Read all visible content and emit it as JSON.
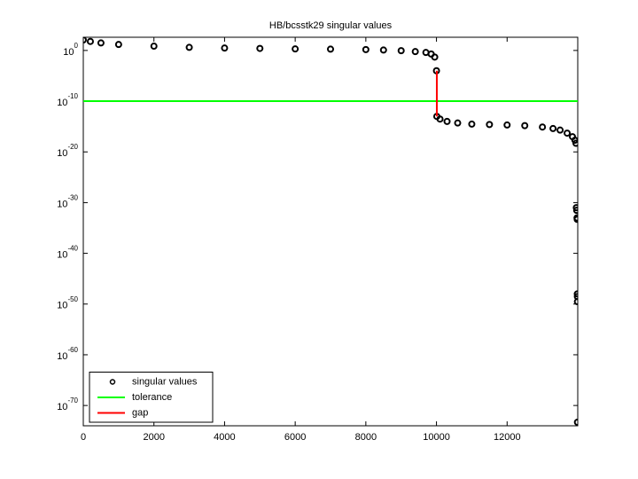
{
  "chart_data": {
    "type": "scatter",
    "title": "HB/bcsstk29 singular values",
    "ylog": true,
    "legend_location": "lower left",
    "xlim": [
      0,
      14000
    ],
    "ylim": [
      1e-74,
      400
    ],
    "xticks": [
      0,
      2000,
      4000,
      6000,
      8000,
      10000,
      12000
    ],
    "yticks": [
      {
        "value": 1,
        "label": "10^0"
      },
      {
        "value": 1e-10,
        "label": "10^-10"
      },
      {
        "value": 1e-20,
        "label": "10^-20"
      },
      {
        "value": 1e-30,
        "label": "10^-30"
      },
      {
        "value": 1e-40,
        "label": "10^-40"
      },
      {
        "value": 1e-50,
        "label": "10^-50"
      },
      {
        "value": 1e-60,
        "label": "10^-60"
      },
      {
        "value": 1e-70,
        "label": "10^-70"
      }
    ],
    "series": [
      {
        "name": "singular values",
        "color": "#000000",
        "style": "marker",
        "x": [
          0,
          200,
          500,
          1000,
          2000,
          3000,
          4000,
          5000,
          6000,
          7000,
          8000,
          8500,
          9000,
          9400,
          9700,
          9850,
          9950,
          10000,
          10010,
          10100,
          10300,
          10600,
          11000,
          11500,
          12000,
          12500,
          13000,
          13300,
          13500,
          13700,
          13850,
          13920,
          13950,
          13960,
          13970,
          13980,
          13985,
          13988,
          13990,
          13991,
          13992
        ],
        "values": [
          120,
          60,
          30,
          15,
          7,
          4,
          3,
          2.5,
          2,
          1.8,
          1.5,
          1.2,
          0.9,
          0.6,
          0.4,
          0.2,
          0.05,
          0.0001,
          1e-13,
          3e-14,
          1e-14,
          5e-15,
          3e-15,
          2.5e-15,
          2e-15,
          1.5e-15,
          8e-16,
          4e-16,
          2e-16,
          5e-17,
          1e-17,
          2e-18,
          5e-19,
          1e-31,
          3e-32,
          1e-33,
          5e-34,
          1e-48,
          3e-49,
          3e-50,
          5e-74
        ]
      },
      {
        "name": "tolerance",
        "color": "#00ff00",
        "style": "line",
        "x": [
          0,
          14000
        ],
        "values": [
          1e-10,
          1e-10
        ]
      },
      {
        "name": "gap",
        "color": "#ff0000",
        "style": "line",
        "x": [
          10010,
          10010
        ],
        "values": [
          0.0001,
          1e-13
        ]
      }
    ]
  }
}
